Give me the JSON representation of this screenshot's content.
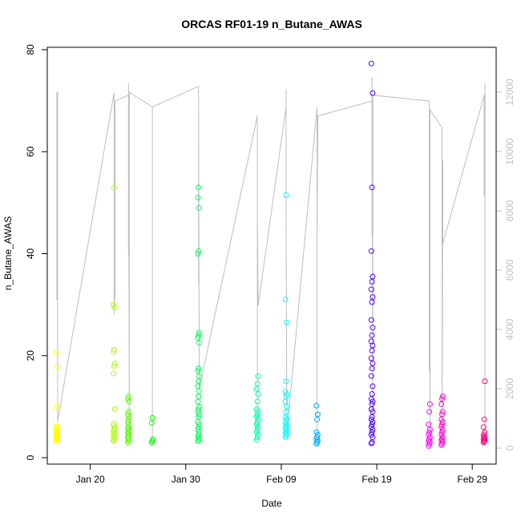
{
  "chart_data": {
    "type": "scatter",
    "title": "ORCAS RF01-19 n_Butane_AWAS",
    "xlabel": "Date",
    "ylabel": "n_Butane_AWAS",
    "x_type": "date",
    "xlim": [
      "2016-01-15T12:00",
      "2016-03-02T12:00"
    ],
    "ylim": [
      0,
      80
    ],
    "y2lim": [
      0,
      13500
    ],
    "x_ticks": [
      {
        "date": "2016-01-20",
        "label": "Jan 20"
      },
      {
        "date": "2016-01-30",
        "label": "Jan 30"
      },
      {
        "date": "2016-02-09",
        "label": "Feb 09"
      },
      {
        "date": "2016-02-19",
        "label": "Feb 19"
      },
      {
        "date": "2016-02-29",
        "label": "Feb 29"
      }
    ],
    "y_ticks": [
      0,
      20,
      40,
      60,
      80
    ],
    "y2_ticks": [
      0,
      2000,
      4000,
      6000,
      8000,
      10000,
      12000
    ],
    "grid": false,
    "legend": "none",
    "secondary_line": {
      "color": "#bebebe",
      "points": [
        {
          "x": "2016-01-16T12:00",
          "y": 12000
        },
        {
          "x": "2016-01-16T12:00",
          "y": 6500
        },
        {
          "x": "2016-01-16T12:00",
          "y": 7200
        },
        {
          "x": "2016-01-16T12:00",
          "y": 5000
        },
        {
          "x": "2016-01-16T12:00",
          "y": 12000
        },
        {
          "x": "2016-01-16T14:00",
          "y": 7000
        },
        {
          "x": "2016-01-16T14:00",
          "y": 12000
        },
        {
          "x": "2016-01-16T14:00",
          "y": 900
        },
        {
          "x": "2016-01-22T12:00",
          "y": 12000
        },
        {
          "x": "2016-01-22T12:00",
          "y": 4500
        },
        {
          "x": "2016-01-22T12:00",
          "y": 6600
        },
        {
          "x": "2016-01-22T12:00",
          "y": 11800
        },
        {
          "x": "2016-01-22T14:00",
          "y": 5000
        },
        {
          "x": "2016-01-22T14:00",
          "y": 11700
        },
        {
          "x": "2016-01-24T00:00",
          "y": 11900
        },
        {
          "x": "2016-01-24T00:00",
          "y": 6500
        },
        {
          "x": "2016-01-24T00:00",
          "y": 12300
        },
        {
          "x": "2016-01-24T02:00",
          "y": 500
        },
        {
          "x": "2016-01-24T02:00",
          "y": 12000
        },
        {
          "x": "2016-01-26T12:00",
          "y": 11500
        },
        {
          "x": "2016-01-26T12:00",
          "y": 300
        },
        {
          "x": "2016-01-26T12:00",
          "y": 11500
        },
        {
          "x": "2016-01-31T08:00",
          "y": 12200
        },
        {
          "x": "2016-01-31T08:00",
          "y": 5500
        },
        {
          "x": "2016-01-31T08:00",
          "y": 11800
        },
        {
          "x": "2016-01-31T10:00",
          "y": 2000
        },
        {
          "x": "2016-02-06T12:00",
          "y": 11200
        },
        {
          "x": "2016-02-06T12:00",
          "y": 500
        },
        {
          "x": "2016-02-06T12:00",
          "y": 7900
        },
        {
          "x": "2016-02-06T14:00",
          "y": 4800
        },
        {
          "x": "2016-02-09T12:00",
          "y": 11500
        },
        {
          "x": "2016-02-09T12:00",
          "y": 12100
        },
        {
          "x": "2016-02-09T12:00",
          "y": 8000
        },
        {
          "x": "2016-02-09T14:00",
          "y": 500
        },
        {
          "x": "2016-02-12T18:00",
          "y": 11500
        },
        {
          "x": "2016-02-12T18:00",
          "y": 400
        },
        {
          "x": "2016-02-12T18:00",
          "y": 7000
        },
        {
          "x": "2016-02-12T20:00",
          "y": 11200
        },
        {
          "x": "2016-02-18T12:00",
          "y": 11700
        },
        {
          "x": "2016-02-18T12:00",
          "y": 7200
        },
        {
          "x": "2016-02-18T12:00",
          "y": 12500
        },
        {
          "x": "2016-02-18T14:00",
          "y": 400
        },
        {
          "x": "2016-02-18T14:00",
          "y": 11900
        },
        {
          "x": "2016-02-24T12:00",
          "y": 11700
        },
        {
          "x": "2016-02-24T12:00",
          "y": 2600
        },
        {
          "x": "2016-02-24T12:00",
          "y": 6600
        },
        {
          "x": "2016-02-24T14:00",
          "y": 400
        },
        {
          "x": "2016-02-24T14:00",
          "y": 11400
        },
        {
          "x": "2016-02-25T20:00",
          "y": 10800
        },
        {
          "x": "2016-02-25T20:00",
          "y": 300
        },
        {
          "x": "2016-02-25T22:00",
          "y": 9700
        },
        {
          "x": "2016-02-25T22:00",
          "y": 6900
        },
        {
          "x": "2016-03-01T06:00",
          "y": 11900
        },
        {
          "x": "2016-03-01T06:00",
          "y": 8500
        },
        {
          "x": "2016-03-01T08:00",
          "y": 12300
        },
        {
          "x": "2016-03-01T08:00",
          "y": 300
        }
      ]
    },
    "series": [
      {
        "color": "#ffff00",
        "x": "2016-01-16T12:00",
        "values": [
          3.2,
          3.5,
          3.8,
          4.0,
          4.2,
          4.4,
          4.6,
          4.8,
          5.0,
          5.2,
          5.5,
          5.8,
          6.0,
          6.2,
          3.6,
          3.9,
          10.0,
          18.0,
          20.5
        ]
      },
      {
        "color": "#aaff00",
        "x": "2016-01-22T12:00",
        "values": [
          3.3,
          3.6,
          3.9,
          4.2,
          4.5,
          4.8,
          5.1,
          5.5,
          5.9,
          6.3,
          6.7,
          9.5,
          16.5,
          18.0,
          18.5,
          20.8,
          21.2,
          29.5,
          30.0,
          53.0
        ]
      },
      {
        "color": "#55ff00",
        "x": "2016-01-24T00:00",
        "values": [
          3.0,
          3.3,
          3.6,
          3.9,
          4.2,
          4.5,
          4.8,
          5.1,
          5.4,
          5.7,
          6.0,
          6.5,
          7.0,
          7.5,
          8.0,
          8.5,
          9.0,
          11.0,
          11.5,
          12.0
        ]
      },
      {
        "color": "#00ff00",
        "x": "2016-01-26T12:00",
        "values": [
          3.0,
          3.3,
          3.6,
          6.8,
          7.8
        ]
      },
      {
        "color": "#00ff55",
        "x": "2016-01-31T08:00",
        "values": [
          3.2,
          3.5,
          3.8,
          4.1,
          4.5,
          5.0,
          5.5,
          6.0,
          6.5,
          7.0,
          8.0,
          8.5,
          9.0,
          9.5,
          10.0,
          11.0,
          12.0,
          13.0,
          14.0,
          15.0,
          16.0,
          17.0,
          17.5,
          22.5,
          23.5,
          24.0,
          24.5,
          40.0,
          40.5,
          49.0,
          51.0,
          53.0
        ]
      },
      {
        "color": "#00ffaa",
        "x": "2016-02-06T12:00",
        "values": [
          3.5,
          4.0,
          4.5,
          5.0,
          5.5,
          6.0,
          6.5,
          7.0,
          7.5,
          8.0,
          8.5,
          9.0,
          9.5,
          11.0,
          12.5,
          13.5,
          14.5,
          16.0
        ]
      },
      {
        "color": "#00ffff",
        "x": "2016-02-09T12:00",
        "values": [
          4.0,
          4.3,
          4.6,
          4.9,
          5.2,
          5.5,
          5.8,
          6.1,
          6.4,
          6.8,
          7.2,
          7.6,
          8.0,
          9.0,
          10.0,
          11.0,
          12.0,
          12.5,
          13.0,
          15.0,
          26.5,
          31.0,
          51.5
        ]
      },
      {
        "color": "#00aaff",
        "x": "2016-02-12T18:00",
        "values": [
          2.7,
          3.0,
          3.3,
          3.6,
          4.0,
          4.5,
          5.0,
          7.5,
          8.5,
          10.2
        ]
      },
      {
        "color": "#5500ff",
        "x": "2016-02-18T12:00",
        "values": [
          2.8,
          3.0,
          4.0,
          4.5,
          5.0,
          5.5,
          6.0,
          6.5,
          7.0,
          7.5,
          8.0,
          9.0,
          9.5,
          10.5,
          11.0,
          11.5,
          12.5,
          14.0,
          16.0,
          17.5,
          18.5,
          19.5,
          21.0,
          22.0,
          22.8,
          24.0,
          25.5,
          27.0,
          30.5,
          31.5,
          33.0,
          34.5,
          35.5,
          40.5,
          53.0,
          71.5,
          77.3
        ]
      },
      {
        "color": "#ff00ff",
        "x": "2016-02-24T12:00",
        "values": [
          2.3,
          2.7,
          3.0,
          3.3,
          3.6,
          4.0,
          4.5,
          5.0,
          5.5,
          6.5,
          9.0,
          10.5
        ]
      },
      {
        "color": "#ff00cc",
        "x": "2016-02-25T20:00",
        "values": [
          2.5,
          2.8,
          3.1,
          3.4,
          3.7,
          4.0,
          4.5,
          5.0,
          5.5,
          6.0,
          6.5,
          7.0,
          7.5,
          8.5,
          9.0,
          10.5,
          11.5,
          12.0
        ]
      },
      {
        "color": "#ff0088",
        "x": "2016-03-01T06:00",
        "values": [
          3.0,
          3.2,
          3.4,
          3.6,
          3.8,
          4.0,
          4.3,
          4.6,
          5.0,
          6.0,
          7.5,
          15.0
        ]
      }
    ]
  }
}
